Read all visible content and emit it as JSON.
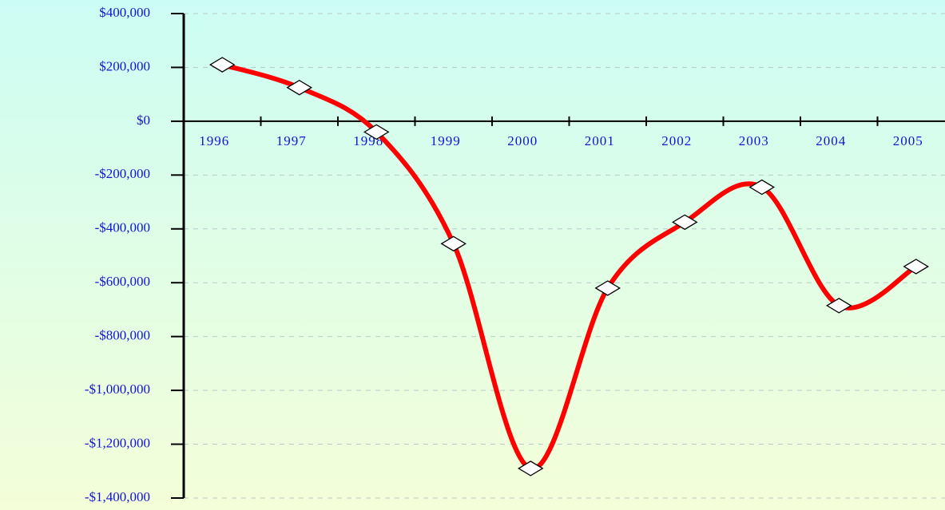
{
  "chart_data": {
    "type": "line",
    "categories": [
      "1996",
      "1997",
      "1998",
      "1999",
      "2000",
      "2001",
      "2002",
      "2003",
      "2004",
      "2005"
    ],
    "series": [
      {
        "color": "#ff0000",
        "values": [
          210000,
          125000,
          -40000,
          -455000,
          -1290000,
          -620000,
          -375000,
          -245000,
          -685000,
          -540000
        ]
      }
    ],
    "ylim": [
      -1400000,
      400000
    ],
    "yticks": [
      {
        "value": -1400000,
        "label": "-$1,400,000"
      },
      {
        "value": -1200000,
        "label": "-$1,200,000"
      },
      {
        "value": -1000000,
        "label": "-$1,000,000"
      },
      {
        "value": -800000,
        "label": "-$800,000"
      },
      {
        "value": -600000,
        "label": "-$600,000"
      },
      {
        "value": -400000,
        "label": "-$400,000"
      },
      {
        "value": -200000,
        "label": "-$200,000"
      },
      {
        "value": 0,
        "label": "$0"
      },
      {
        "value": 200000,
        "label": "$200,000"
      },
      {
        "value": 400000,
        "label": "$400,000"
      }
    ],
    "grid": true
  }
}
